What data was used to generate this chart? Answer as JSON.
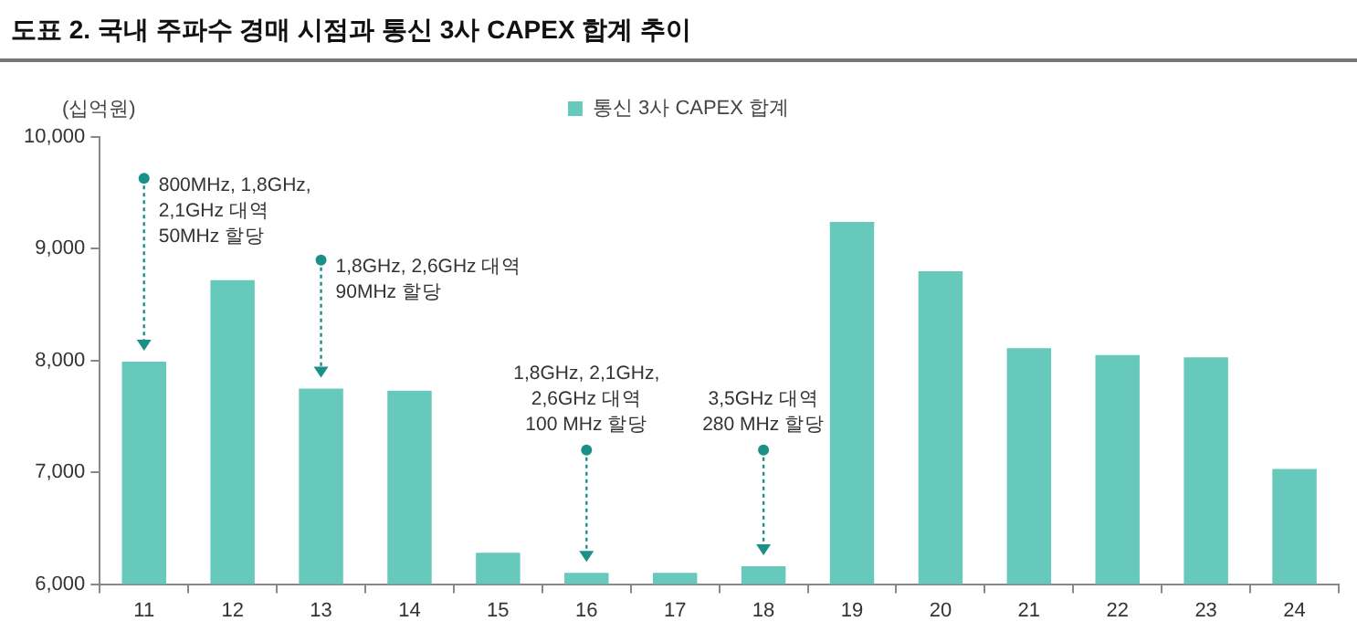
{
  "chart_data": {
    "type": "bar",
    "title": "도표 2. 국내 주파수 경매 시점과 통신 3사 CAPEX 합계 추이",
    "ylabel": "(십억원)",
    "categories": [
      "11",
      "12",
      "13",
      "14",
      "15",
      "16",
      "17",
      "18",
      "19",
      "20",
      "21",
      "22",
      "23",
      "24"
    ],
    "series": [
      {
        "name": "통신 3사 CAPEX 합계",
        "color": "#66c9bc",
        "values": [
          7990,
          8720,
          7750,
          7730,
          6280,
          6100,
          6100,
          6160,
          9240,
          8800,
          8110,
          8050,
          8030,
          7030
        ]
      }
    ],
    "ylim": [
      6000,
      10000
    ],
    "yticks": [
      {
        "value": 6000,
        "label": "6,000"
      },
      {
        "value": 7000,
        "label": "7,000"
      },
      {
        "value": 8000,
        "label": "8,000"
      },
      {
        "value": 9000,
        "label": "9,000"
      },
      {
        "value": 10000,
        "label": "10,000"
      }
    ],
    "grid": false,
    "legend": "top",
    "annotations": [
      {
        "text": "800MHz, 1,8GHz,\n2,1GHz 대역\n50MHz 할당",
        "x": "11",
        "y": 9630
      },
      {
        "text": "1,8GHz, 2,6GHz 대역\n90MHz 할당",
        "x": "13",
        "y": 8900
      },
      {
        "text": "1,8GHz, 2,1GHz,\n2,6GHz 대역\n100 MHz 할당",
        "x": "16",
        "y": 7200
      },
      {
        "text": "3,5GHz 대역\n280 MHz 할당",
        "x": "18",
        "y": 7200
      }
    ]
  }
}
